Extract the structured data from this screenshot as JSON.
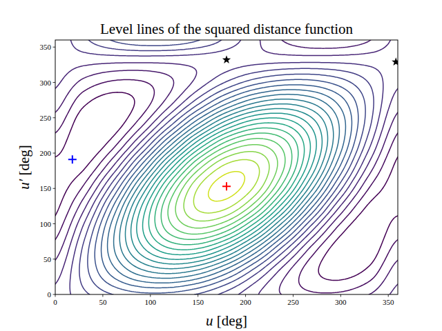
{
  "chart_data": {
    "type": "contour",
    "title": "Level lines of the squared distance function",
    "x_label": "u [deg]",
    "y_label": "u′ [deg]",
    "xlim": [
      0,
      360
    ],
    "ylim": [
      0,
      360
    ],
    "xticks": [
      0,
      50,
      100,
      150,
      200,
      250,
      300,
      350
    ],
    "yticks": [
      0,
      50,
      100,
      150,
      200,
      250,
      300,
      350
    ],
    "grid_x": [
      0,
      30,
      60,
      90,
      120,
      150,
      180,
      210,
      240,
      270,
      300,
      330,
      360
    ],
    "grid_y": [
      -27,
      3,
      33,
      63,
      93,
      123,
      153,
      183,
      213,
      243,
      273,
      303,
      333,
      363
    ],
    "z": [
      [
        8,
        8,
        8,
        8,
        8,
        8,
        8,
        8,
        8,
        8,
        8,
        8,
        8
      ],
      [
        7.87,
        8.67,
        9.37,
        9.77,
        9.77,
        9.37,
        8.67,
        7.87,
        7.17,
        6.77,
        6.77,
        7.17,
        7.87
      ],
      [
        7.5,
        9,
        10.5,
        11.6,
        12,
        11.6,
        10.5,
        9,
        7.5,
        6.4,
        6,
        6.4,
        7.5
      ],
      [
        7,
        8.9,
        11.1,
        13,
        14.1,
        14.1,
        13,
        11.1,
        8.9,
        7,
        5.9,
        5.9,
        7
      ],
      [
        6.5,
        8.4,
        11,
        13.6,
        15.5,
        16.2,
        15.5,
        13.6,
        11,
        8.4,
        6.5,
        5.8,
        6.5
      ],
      [
        6.13,
        7.63,
        10.23,
        13.23,
        15.83,
        17.33,
        17.33,
        15.83,
        13.23,
        10.23,
        7.63,
        6.13,
        6.13
      ],
      [
        6,
        6.8,
        9,
        12,
        15,
        17.2,
        18,
        17.2,
        15,
        12,
        9,
        6.8,
        6
      ],
      [
        6.13,
        6.13,
        7.63,
        10.23,
        13.23,
        15.83,
        17.33,
        17.33,
        15.83,
        13.23,
        10.23,
        7.63,
        6.13
      ],
      [
        6.5,
        5.8,
        6.5,
        8.4,
        11,
        13.6,
        15.5,
        16.2,
        15.5,
        13.6,
        11,
        8.4,
        6.5
      ],
      [
        7,
        5.9,
        5.9,
        7,
        8.9,
        11.1,
        13,
        14.1,
        14.1,
        13,
        11.1,
        8.9,
        7
      ],
      [
        7.5,
        6.4,
        6,
        6.4,
        7.5,
        9,
        10.5,
        11.6,
        12,
        11.6,
        10.5,
        9,
        7.5
      ],
      [
        7.87,
        7.17,
        6.77,
        6.77,
        7.17,
        7.87,
        8.67,
        9.37,
        9.77,
        9.77,
        9.37,
        8.67,
        7.87
      ],
      [
        8,
        8,
        8,
        8,
        8,
        8,
        8,
        8,
        8,
        8,
        8,
        8,
        8
      ],
      [
        7.87,
        8.67,
        9.37,
        9.77,
        9.77,
        9.37,
        8.67,
        7.87,
        7.17,
        6.77,
        6.77,
        7.17,
        7.87
      ]
    ],
    "levels": [
      6.25,
      6.75,
      7.25,
      7.75,
      8.25,
      8.75,
      9.25,
      9.75,
      10.25,
      10.75,
      11.25,
      11.75,
      12.25,
      12.75,
      13.25,
      13.75,
      14.25,
      14.75,
      15.25,
      15.75,
      16.25,
      16.75,
      17.25,
      17.75
    ],
    "colors": [
      "#440154",
      "#470d60",
      "#481a6c",
      "#482576",
      "#46307e",
      "#433c84",
      "#3f4788",
      "#3a518b",
      "#355b8d",
      "#31658e",
      "#2d6e8e",
      "#29788e",
      "#26818e",
      "#228a8d",
      "#1f948c",
      "#1f9e89",
      "#26a784",
      "#31b07b",
      "#40ba71",
      "#54c566",
      "#6ccd5a",
      "#86d549",
      "#a5db36",
      "#d0e11c"
    ],
    "series": [
      {
        "color": "red",
        "marker": "plus",
        "x": [
          180
        ],
        "values": [
          153
        ]
      },
      {
        "color": "blue",
        "marker": "plus",
        "x": [
          18
        ],
        "values": [
          191
        ]
      },
      {
        "color": "black",
        "marker": "star",
        "x": [
          180,
          358
        ],
        "values": [
          332,
          329
        ]
      }
    ]
  }
}
